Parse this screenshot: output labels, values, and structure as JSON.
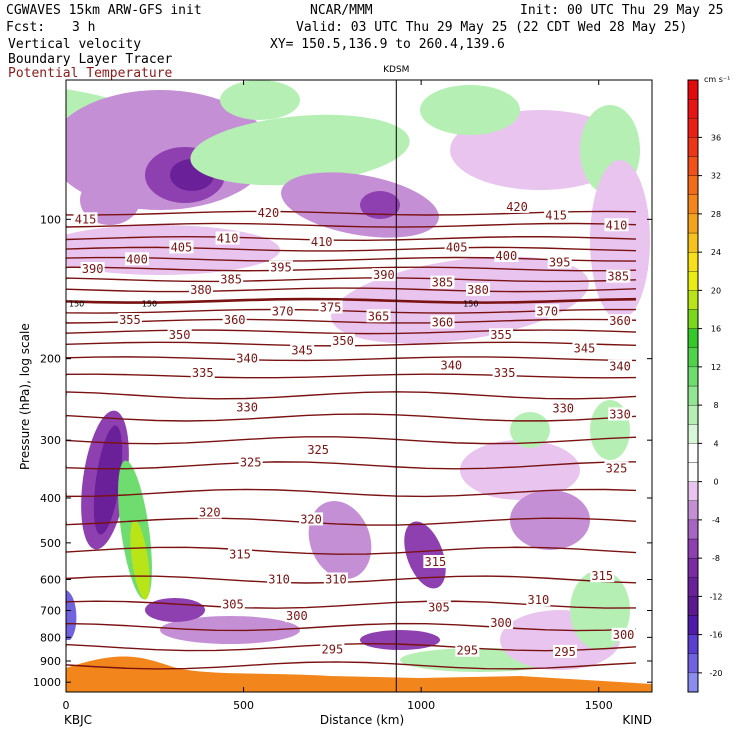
{
  "header": {
    "model": "CGWAVES 15km ARW-GFS init",
    "fcst_label": "Fcst:",
    "fcst_value": "3 h",
    "org": "NCAR/MMM",
    "init": "Init: 00 UTC Thu 29 May 25",
    "valid": "Valid: 03 UTC Thu 29 May 25 (22 CDT Wed 28 May 25)",
    "xy": "XY= 150.5,136.9 to 260.4,139.6",
    "fields": [
      {
        "label": "Vertical velocity",
        "color": "#000000"
      },
      {
        "label": "Boundary Layer Tracer",
        "color": "#000000"
      },
      {
        "label": "Potential Temperature",
        "color": "#8b1a1a"
      }
    ]
  },
  "chart_data": {
    "type": "heatmap",
    "ylabel": "Pressure (hPa), log scale",
    "xlabel": "Distance (km)",
    "ylog": true,
    "xlim": [
      0,
      1650
    ],
    "ylim": [
      1050,
      50
    ],
    "x_ticks": [
      0,
      500,
      1000,
      1500
    ],
    "y_ticks": [
      100,
      200,
      300,
      400,
      500,
      600,
      700,
      800,
      900,
      1000
    ],
    "left_station": "KBJC",
    "right_station": "KIND",
    "marker": {
      "label": "KDSM",
      "x": 930
    },
    "colorbar": {
      "units": "cm s⁻¹",
      "levels": [
        -22,
        -20,
        -18,
        -16,
        -14,
        -12,
        -10,
        -8,
        -6,
        -4,
        -2,
        0,
        2,
        4,
        6,
        8,
        10,
        12,
        14,
        16,
        18,
        20,
        22,
        24,
        26,
        28,
        30,
        32,
        34,
        36,
        38,
        40,
        42
      ],
      "labels": [
        -20,
        -16,
        -12,
        -8,
        -4,
        0,
        4,
        8,
        12,
        16,
        20,
        24,
        28,
        32,
        36
      ],
      "colors": [
        "#8a8cf0",
        "#6f63e0",
        "#5a3ed0",
        "#4e1aa8",
        "#5b1890",
        "#6a2099",
        "#7a2aa3",
        "#8e3fb0",
        "#a665c2",
        "#c58fd6",
        "#e8c4ee",
        "#ffffff",
        "#ffffff",
        "#d8f6d8",
        "#b6efb4",
        "#92e592",
        "#6fdc6f",
        "#4fd34b",
        "#36c82a",
        "#79d81e",
        "#b9e518",
        "#e8ee14",
        "#f7e01a",
        "#f6c21e",
        "#f4a31e",
        "#f2861c",
        "#f26b1a",
        "#f1501a",
        "#ef3518",
        "#ec1f16",
        "#e81314",
        "#e30a0e",
        "#df0010"
      ]
    },
    "isentropes": {
      "color": "#7a1212",
      "labels": [
        {
          "v": "415",
          "x": 55,
          "p": 100
        },
        {
          "v": "420",
          "x": 570,
          "p": 97
        },
        {
          "v": "420",
          "x": 1270,
          "p": 94
        },
        {
          "v": "415",
          "x": 1380,
          "p": 98
        },
        {
          "v": "410",
          "x": 1550,
          "p": 103
        },
        {
          "v": "390",
          "x": 75,
          "p": 128
        },
        {
          "v": "400",
          "x": 200,
          "p": 122
        },
        {
          "v": "405",
          "x": 325,
          "p": 115
        },
        {
          "v": "410",
          "x": 455,
          "p": 110
        },
        {
          "v": "410",
          "x": 720,
          "p": 112
        },
        {
          "v": "405",
          "x": 1100,
          "p": 115
        },
        {
          "v": "400",
          "x": 1240,
          "p": 120
        },
        {
          "v": "395",
          "x": 1390,
          "p": 124
        },
        {
          "v": "385",
          "x": 1555,
          "p": 133
        },
        {
          "v": "380",
          "x": 380,
          "p": 142
        },
        {
          "v": "385",
          "x": 465,
          "p": 135
        },
        {
          "v": "395",
          "x": 605,
          "p": 127
        },
        {
          "v": "390",
          "x": 895,
          "p": 132
        },
        {
          "v": "385",
          "x": 1060,
          "p": 137
        },
        {
          "v": "380",
          "x": 1160,
          "p": 142
        },
        {
          "v": "355",
          "x": 180,
          "p": 165
        },
        {
          "v": "370",
          "x": 610,
          "p": 158
        },
        {
          "v": "375",
          "x": 745,
          "p": 155
        },
        {
          "v": "365",
          "x": 880,
          "p": 162
        },
        {
          "v": "360",
          "x": 1060,
          "p": 167
        },
        {
          "v": "370",
          "x": 1355,
          "p": 158
        },
        {
          "v": "360",
          "x": 1560,
          "p": 166
        },
        {
          "v": "350",
          "x": 320,
          "p": 178
        },
        {
          "v": "360",
          "x": 475,
          "p": 165
        },
        {
          "v": "355",
          "x": 1225,
          "p": 178
        },
        {
          "v": "345",
          "x": 1460,
          "p": 190
        },
        {
          "v": "345",
          "x": 665,
          "p": 192
        },
        {
          "v": "350",
          "x": 780,
          "p": 183
        },
        {
          "v": "340",
          "x": 510,
          "p": 200
        },
        {
          "v": "340",
          "x": 1085,
          "p": 207
        },
        {
          "v": "335",
          "x": 1235,
          "p": 215
        },
        {
          "v": "340",
          "x": 1560,
          "p": 208
        },
        {
          "v": "335",
          "x": 385,
          "p": 215
        },
        {
          "v": "330",
          "x": 510,
          "p": 255
        },
        {
          "v": "330",
          "x": 1400,
          "p": 256
        },
        {
          "v": "330",
          "x": 1560,
          "p": 264
        },
        {
          "v": "325",
          "x": 520,
          "p": 335
        },
        {
          "v": "325",
          "x": 710,
          "p": 315
        },
        {
          "v": "325",
          "x": 1550,
          "p": 345
        },
        {
          "v": "320",
          "x": 405,
          "p": 430
        },
        {
          "v": "320",
          "x": 690,
          "p": 445
        },
        {
          "v": "315",
          "x": 490,
          "p": 530
        },
        {
          "v": "315",
          "x": 1040,
          "p": 550
        },
        {
          "v": "315",
          "x": 1510,
          "p": 590
        },
        {
          "v": "310",
          "x": 600,
          "p": 600
        },
        {
          "v": "310",
          "x": 760,
          "p": 600
        },
        {
          "v": "310",
          "x": 1330,
          "p": 665
        },
        {
          "v": "305",
          "x": 470,
          "p": 680
        },
        {
          "v": "305",
          "x": 1050,
          "p": 690
        },
        {
          "v": "300",
          "x": 650,
          "p": 720
        },
        {
          "v": "300",
          "x": 1225,
          "p": 745
        },
        {
          "v": "300",
          "x": 1570,
          "p": 790
        },
        {
          "v": "295",
          "x": 750,
          "p": 850
        },
        {
          "v": "295",
          "x": 1130,
          "p": 855
        },
        {
          "v": "295",
          "x": 1405,
          "p": 860
        }
      ],
      "small_labels": [
        {
          "v": "150",
          "x": 30,
          "p": 152
        },
        {
          "v": "150",
          "x": 235,
          "p": 152
        },
        {
          "v": "150",
          "x": 1140,
          "p": 152
        }
      ]
    }
  }
}
